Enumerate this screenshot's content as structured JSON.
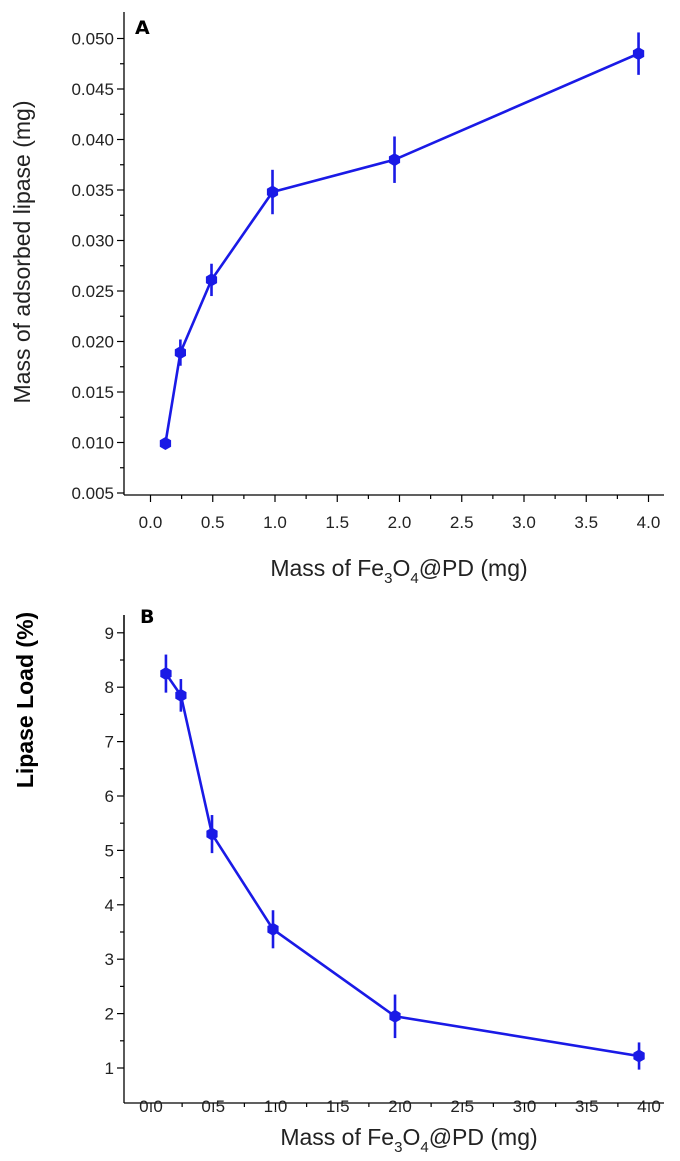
{
  "chart_data": [
    {
      "type": "line",
      "panel_label": "A",
      "xlabel_main": "Mass of Fe",
      "xlabel_sub1": "3",
      "xlabel_mid": "O",
      "xlabel_sub2": "4",
      "xlabel_tail": "@PD (mg)",
      "ylabel": "Mass of adsorbed lipase (mg)",
      "xlim": [
        -0.25,
        4.1
      ],
      "ylim": [
        0.005,
        0.0515
      ],
      "x_ticks": [
        "0.0",
        "0.5",
        "1.0",
        "1.5",
        "2.0",
        "2.5",
        "3.0",
        "3.5",
        "4.0"
      ],
      "y_ticks": [
        "0.005",
        "0.010",
        "0.015",
        "0.020",
        "0.025",
        "0.030",
        "0.035",
        "0.040",
        "0.045",
        "0.050"
      ],
      "color": "#1a1ae6",
      "series": [
        {
          "x": [
            0.12,
            0.24,
            0.49,
            0.98,
            1.96,
            3.92
          ],
          "y": [
            0.0099,
            0.0189,
            0.0261,
            0.0348,
            0.038,
            0.0485
          ],
          "err": [
            0.0003,
            0.0013,
            0.0016,
            0.0022,
            0.0023,
            0.0021
          ]
        }
      ]
    },
    {
      "type": "line",
      "panel_label": "B",
      "xlabel_main": "Mass of Fe",
      "xlabel_sub1": "3",
      "xlabel_mid": "O",
      "xlabel_sub2": "4",
      "xlabel_tail": "@PD (mg)",
      "ylabel": "Lipase Load (%)",
      "xlim": [
        -0.25,
        4.1
      ],
      "ylim": [
        0.65,
        9
      ],
      "x_ticks": [
        "0.0",
        "0.5",
        "1.0",
        "1.5",
        "2.0",
        "2.5",
        "3.0",
        "3.5",
        "4.0"
      ],
      "y_ticks": [
        "1",
        "2",
        "3",
        "4",
        "5",
        "6",
        "7",
        "8",
        "9"
      ],
      "color": "#1a1ae6",
      "series": [
        {
          "x": [
            0.12,
            0.24,
            0.49,
            0.98,
            1.96,
            3.92
          ],
          "y": [
            8.25,
            7.85,
            5.3,
            3.55,
            1.95,
            1.22
          ],
          "err": [
            0.35,
            0.3,
            0.35,
            0.35,
            0.4,
            0.25
          ]
        }
      ]
    }
  ]
}
